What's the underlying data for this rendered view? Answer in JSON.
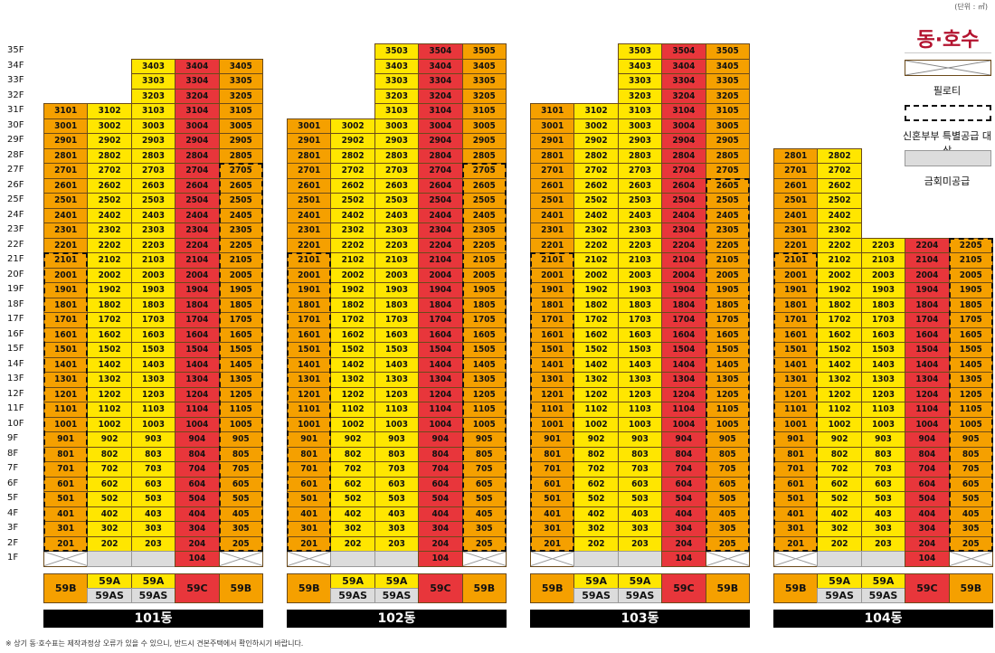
{
  "unit_note": "(단위 : ㎡)",
  "legend": {
    "title": "동·호수",
    "items": [
      {
        "label": "필로티",
        "kind": "piloti"
      },
      {
        "label": "신혼부부 특별공급 대상",
        "kind": "newlywed"
      },
      {
        "label": "금회미공급",
        "kind": "not-supplied"
      }
    ]
  },
  "footnote": "※ 상기 동·호수표는 제작과정상 오류가 있을 수 있으니, 반드시 견본주택에서 확인하시기 바랍니다.",
  "floor_labels": [
    "35F",
    "34F",
    "33F",
    "32F",
    "31F",
    "30F",
    "29F",
    "28F",
    "27F",
    "26F",
    "25F",
    "24F",
    "23F",
    "22F",
    "21F",
    "20F",
    "19F",
    "18F",
    "17F",
    "16F",
    "15F",
    "14F",
    "13F",
    "12F",
    "11F",
    "10F",
    "9F",
    "8F",
    "7F",
    "6F",
    "5F",
    "4F",
    "3F",
    "2F",
    "1F"
  ],
  "colors": {
    "orange": "#f5a000",
    "yellow": "#ffe600",
    "red": "#e8363b",
    "gray": "#dcdcdc"
  },
  "buildings": [
    {
      "name": "101동",
      "columns": [
        {
          "line": "01",
          "top": 31,
          "type": "59B",
          "color": "orange",
          "f1": "piloti"
        },
        {
          "line": "02",
          "top": 31,
          "type": "59A",
          "type2": "59AS",
          "color": "yellow",
          "f1": "gray"
        },
        {
          "line": "03",
          "top": 34,
          "type": "59A",
          "type2": "59AS",
          "color": "yellow",
          "f1": "gray"
        },
        {
          "line": "04",
          "top": 34,
          "type": "59C",
          "color": "red",
          "f1": "unit"
        },
        {
          "line": "05",
          "top": 34,
          "type": "59B",
          "color": "orange",
          "f1": "piloti"
        }
      ],
      "newlywed": [
        [
          0,
          2,
          21
        ],
        [
          4,
          2,
          27
        ]
      ]
    },
    {
      "name": "102동",
      "columns": [
        {
          "line": "01",
          "top": 30,
          "type": "59B",
          "color": "orange",
          "f1": "piloti"
        },
        {
          "line": "02",
          "top": 30,
          "type": "59A",
          "type2": "59AS",
          "color": "yellow",
          "f1": "gray"
        },
        {
          "line": "03",
          "top": 35,
          "type": "59A",
          "type2": "59AS",
          "color": "yellow",
          "f1": "gray"
        },
        {
          "line": "04",
          "top": 35,
          "type": "59C",
          "color": "red",
          "f1": "unit"
        },
        {
          "line": "05",
          "top": 35,
          "type": "59B",
          "color": "orange",
          "f1": "piloti"
        }
      ],
      "newlywed": [
        [
          0,
          2,
          21
        ],
        [
          4,
          2,
          27
        ]
      ]
    },
    {
      "name": "103동",
      "columns": [
        {
          "line": "01",
          "top": 31,
          "type": "59B",
          "color": "orange",
          "f1": "piloti"
        },
        {
          "line": "02",
          "top": 31,
          "type": "59A",
          "type2": "59AS",
          "color": "yellow",
          "f1": "gray"
        },
        {
          "line": "03",
          "top": 35,
          "type": "59A",
          "type2": "59AS",
          "color": "yellow",
          "f1": "gray"
        },
        {
          "line": "04",
          "top": 35,
          "type": "59C",
          "color": "red",
          "f1": "unit"
        },
        {
          "line": "05",
          "top": 35,
          "type": "59B",
          "color": "orange",
          "f1": "piloti"
        }
      ],
      "newlywed": [
        [
          0,
          2,
          21
        ],
        [
          4,
          2,
          26
        ]
      ]
    },
    {
      "name": "104동",
      "columns": [
        {
          "line": "01",
          "top": 28,
          "type": "59B",
          "color": "orange",
          "f1": "piloti"
        },
        {
          "line": "02",
          "top": 28,
          "type": "59A",
          "type2": "59AS",
          "color": "yellow",
          "f1": "gray"
        },
        {
          "line": "03",
          "top": 22,
          "type": "59A",
          "type2": "59AS",
          "color": "yellow",
          "f1": "gray"
        },
        {
          "line": "04",
          "top": 22,
          "type": "59C",
          "color": "red",
          "f1": "unit"
        },
        {
          "line": "05",
          "top": 22,
          "type": "59B",
          "color": "orange",
          "f1": "piloti"
        }
      ],
      "newlywed": [
        [
          0,
          2,
          21
        ],
        [
          4,
          2,
          22
        ]
      ]
    }
  ]
}
